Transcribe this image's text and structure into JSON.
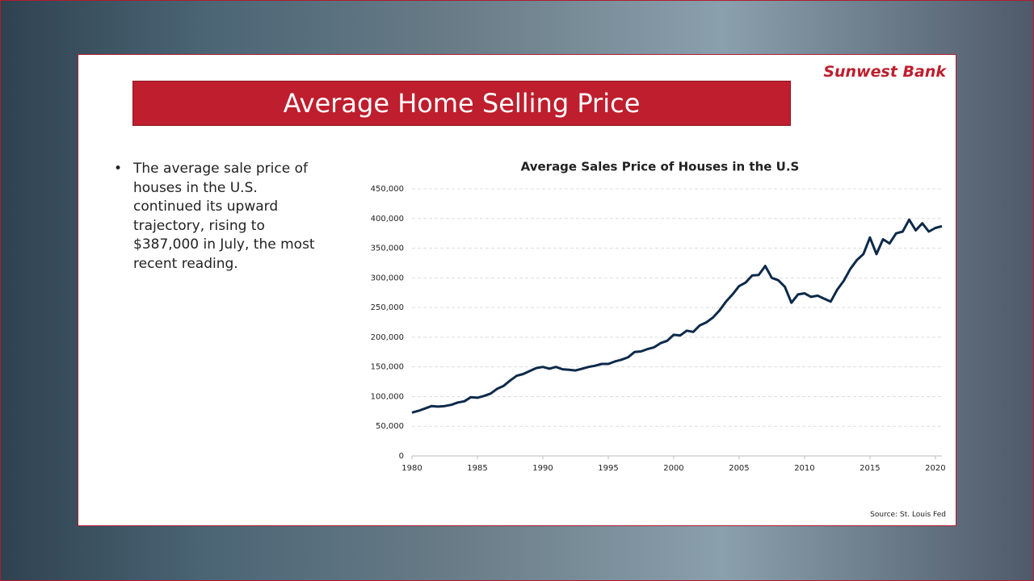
{
  "slide": {
    "title": "Average Home Selling Price",
    "logo": "Sunwest Bank",
    "bullet": "The average sale price of houses in the U.S. continued its upward trajectory, rising to $387,000 in July, the most recent reading.",
    "source": "Source: St. Louis Fed"
  },
  "chart_data": {
    "type": "line",
    "title": "Average Sales Price of Houses in the U.S",
    "color": "#0d2a4a",
    "grid": true,
    "x": [
      1980,
      1980.5,
      1981,
      1981.5,
      1982,
      1982.5,
      1983,
      1983.5,
      1984,
      1984.5,
      1985,
      1985.5,
      1986,
      1986.5,
      1987,
      1987.5,
      1988,
      1988.5,
      1989,
      1989.5,
      1990,
      1990.5,
      1991,
      1991.5,
      1992,
      1992.5,
      1993,
      1993.5,
      1994,
      1994.5,
      1995,
      1995.5,
      1996,
      1996.5,
      1997,
      1997.5,
      1998,
      1998.5,
      1999,
      1999.5,
      2000,
      2000.5,
      2001,
      2001.5,
      2002,
      2002.5,
      2003,
      2003.5,
      2004,
      2004.5,
      2005,
      2005.5,
      2006,
      2006.5,
      2007,
      2007.5,
      2008,
      2008.5,
      2009,
      2009.5,
      2010,
      2010.5,
      2011,
      2011.5,
      2012,
      2012.5,
      2013,
      2013.5,
      2014,
      2014.5,
      2015,
      2015.5,
      2016,
      2016.5,
      2017,
      2017.5,
      2018,
      2018.5,
      2019,
      2019.5,
      2020,
      2020.5
    ],
    "values": [
      73000,
      76000,
      80000,
      84000,
      83000,
      84000,
      86000,
      90000,
      92000,
      99000,
      98000,
      101000,
      105000,
      113000,
      118000,
      127000,
      135000,
      138000,
      143000,
      148000,
      150000,
      147000,
      150000,
      146000,
      145000,
      144000,
      147000,
      150000,
      152000,
      155000,
      155000,
      159000,
      162000,
      166000,
      175000,
      176000,
      180000,
      183000,
      190000,
      194000,
      204000,
      203000,
      211000,
      209000,
      220000,
      225000,
      233000,
      245000,
      260000,
      272000,
      286000,
      292000,
      304000,
      305000,
      320000,
      300000,
      296000,
      285000,
      258000,
      272000,
      274000,
      268000,
      270000,
      265000,
      260000,
      280000,
      295000,
      315000,
      330000,
      340000,
      368000,
      340000,
      365000,
      358000,
      375000,
      378000,
      398000,
      380000,
      392000,
      378000,
      384000,
      387000
    ],
    "xlim": [
      1980,
      2020.5
    ],
    "xticks": [
      1980,
      1985,
      1990,
      1995,
      2000,
      2005,
      2010,
      2015,
      2020
    ],
    "ylim": [
      0,
      450000
    ],
    "yticks": [
      0,
      {
        "value": 50000,
        "label": "50,000"
      },
      {
        "value": 100000,
        "label": "100,000"
      },
      {
        "value": 150000,
        "label": "150,000"
      },
      {
        "value": 200000,
        "label": "200,000"
      },
      {
        "value": 250000,
        "label": "250,000"
      },
      {
        "value": 300000,
        "label": "300,000"
      },
      {
        "value": 350000,
        "label": "350,000"
      },
      {
        "value": 400000,
        "label": "400,000"
      },
      {
        "value": 450000,
        "label": "450,000"
      }
    ]
  }
}
